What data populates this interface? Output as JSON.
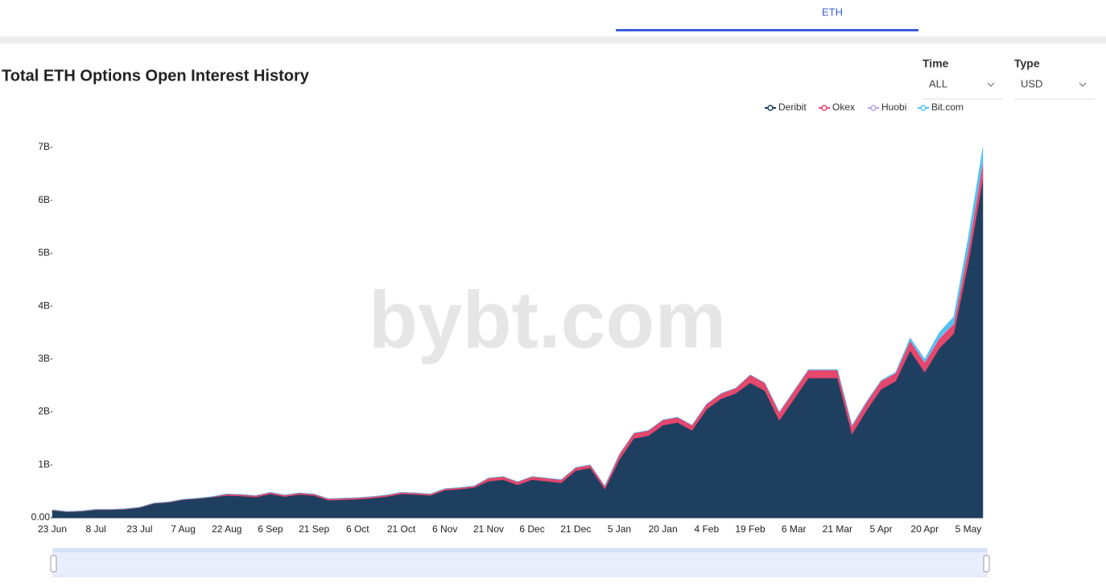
{
  "tabs": {
    "active": "ETH"
  },
  "controls": [
    {
      "label": "Time",
      "value": "ALL"
    },
    {
      "label": "Type",
      "value": "USD"
    }
  ],
  "chart_data": {
    "type": "area",
    "stacked": true,
    "title": "Total ETH Options Open Interest History",
    "watermark": "bybt.com",
    "categories": [
      "23 Jun",
      null,
      null,
      "8 Jul",
      null,
      null,
      "23 Jul",
      null,
      null,
      "7 Aug",
      null,
      null,
      "22 Aug",
      null,
      null,
      "6 Sep",
      null,
      null,
      "21 Sep",
      null,
      null,
      "6 Oct",
      null,
      null,
      "21 Oct",
      null,
      null,
      "6 Nov",
      null,
      null,
      "21 Nov",
      null,
      null,
      "6 Dec",
      null,
      null,
      "21 Dec",
      null,
      null,
      "5 Jan",
      null,
      null,
      "20 Jan",
      null,
      null,
      "4 Feb",
      null,
      null,
      "19 Feb",
      null,
      null,
      "6 Mar",
      null,
      null,
      "21 Mar",
      null,
      null,
      "5 Apr",
      null,
      null,
      "20 Apr",
      null,
      null,
      "5 May",
      null
    ],
    "series": [
      {
        "name": "Deribit",
        "color": "#1f3f60",
        "values": [
          0.14,
          0.11,
          0.12,
          0.15,
          0.15,
          0.16,
          0.19,
          0.27,
          0.29,
          0.34,
          0.36,
          0.39,
          0.42,
          0.41,
          0.39,
          0.45,
          0.4,
          0.44,
          0.42,
          0.33,
          0.34,
          0.35,
          0.37,
          0.4,
          0.45,
          0.44,
          0.42,
          0.52,
          0.54,
          0.57,
          0.69,
          0.72,
          0.62,
          0.72,
          0.69,
          0.66,
          0.89,
          0.94,
          0.54,
          1.1,
          1.5,
          1.55,
          1.75,
          1.8,
          1.65,
          2.05,
          2.25,
          2.35,
          2.55,
          2.4,
          1.84,
          2.24,
          2.64,
          2.64,
          2.64,
          1.58,
          2.03,
          2.43,
          2.58,
          3.16,
          2.75,
          3.2,
          3.48,
          4.82,
          6.4
        ]
      },
      {
        "name": "Okex",
        "color": "#e5476d",
        "values": [
          0.01,
          0.01,
          0.01,
          0.01,
          0.01,
          0.01,
          0.01,
          0.01,
          0.01,
          0.01,
          0.01,
          0.01,
          0.03,
          0.03,
          0.03,
          0.03,
          0.03,
          0.03,
          0.03,
          0.03,
          0.03,
          0.03,
          0.03,
          0.03,
          0.03,
          0.03,
          0.03,
          0.03,
          0.03,
          0.03,
          0.06,
          0.06,
          0.06,
          0.06,
          0.06,
          0.06,
          0.06,
          0.06,
          0.06,
          0.1,
          0.1,
          0.1,
          0.1,
          0.1,
          0.1,
          0.1,
          0.1,
          0.1,
          0.15,
          0.15,
          0.15,
          0.15,
          0.15,
          0.15,
          0.15,
          0.15,
          0.15,
          0.15,
          0.15,
          0.18,
          0.18,
          0.18,
          0.18,
          0.25,
          0.3
        ]
      },
      {
        "name": "Huobi",
        "color": "#b6a4e3",
        "values": [
          0,
          0,
          0,
          0,
          0,
          0,
          0,
          0,
          0,
          0,
          0,
          0,
          0,
          0,
          0,
          0,
          0,
          0,
          0,
          0,
          0,
          0,
          0,
          0,
          0,
          0,
          0,
          0,
          0,
          0,
          0,
          0,
          0,
          0,
          0,
          0,
          0,
          0,
          0,
          0,
          0,
          0,
          0,
          0,
          0,
          0,
          0,
          0,
          0,
          0,
          0.01,
          0.01,
          0.01,
          0.01,
          0.01,
          0.01,
          0.01,
          0.01,
          0.01,
          0.01,
          0.02,
          0.02,
          0.02,
          0.03,
          0.05
        ]
      },
      {
        "name": "Bit.com",
        "color": "#4fc3ef",
        "values": [
          0,
          0,
          0,
          0,
          0,
          0,
          0,
          0,
          0,
          0,
          0,
          0,
          0,
          0,
          0,
          0,
          0,
          0,
          0,
          0,
          0,
          0,
          0,
          0,
          0,
          0,
          0,
          0,
          0,
          0,
          0,
          0,
          0,
          0,
          0,
          0,
          0,
          0,
          0,
          0,
          0,
          0,
          0,
          0,
          0,
          0,
          0,
          0,
          0,
          0,
          0,
          0,
          0,
          0,
          0,
          0.01,
          0.01,
          0.01,
          0.01,
          0.05,
          0.05,
          0.1,
          0.12,
          0.2,
          0.25
        ]
      }
    ],
    "ylim": [
      0,
      7
    ],
    "yticks": [
      {
        "value": 0,
        "label": "0.00"
      },
      {
        "value": 1,
        "label": "1B"
      },
      {
        "value": 2,
        "label": "2B"
      },
      {
        "value": 3,
        "label": "3B"
      },
      {
        "value": 4,
        "label": "4B"
      },
      {
        "value": 5,
        "label": "5B"
      },
      {
        "value": 6,
        "label": "6B"
      },
      {
        "value": 7,
        "label": "7B"
      }
    ],
    "legend": "top-right"
  }
}
